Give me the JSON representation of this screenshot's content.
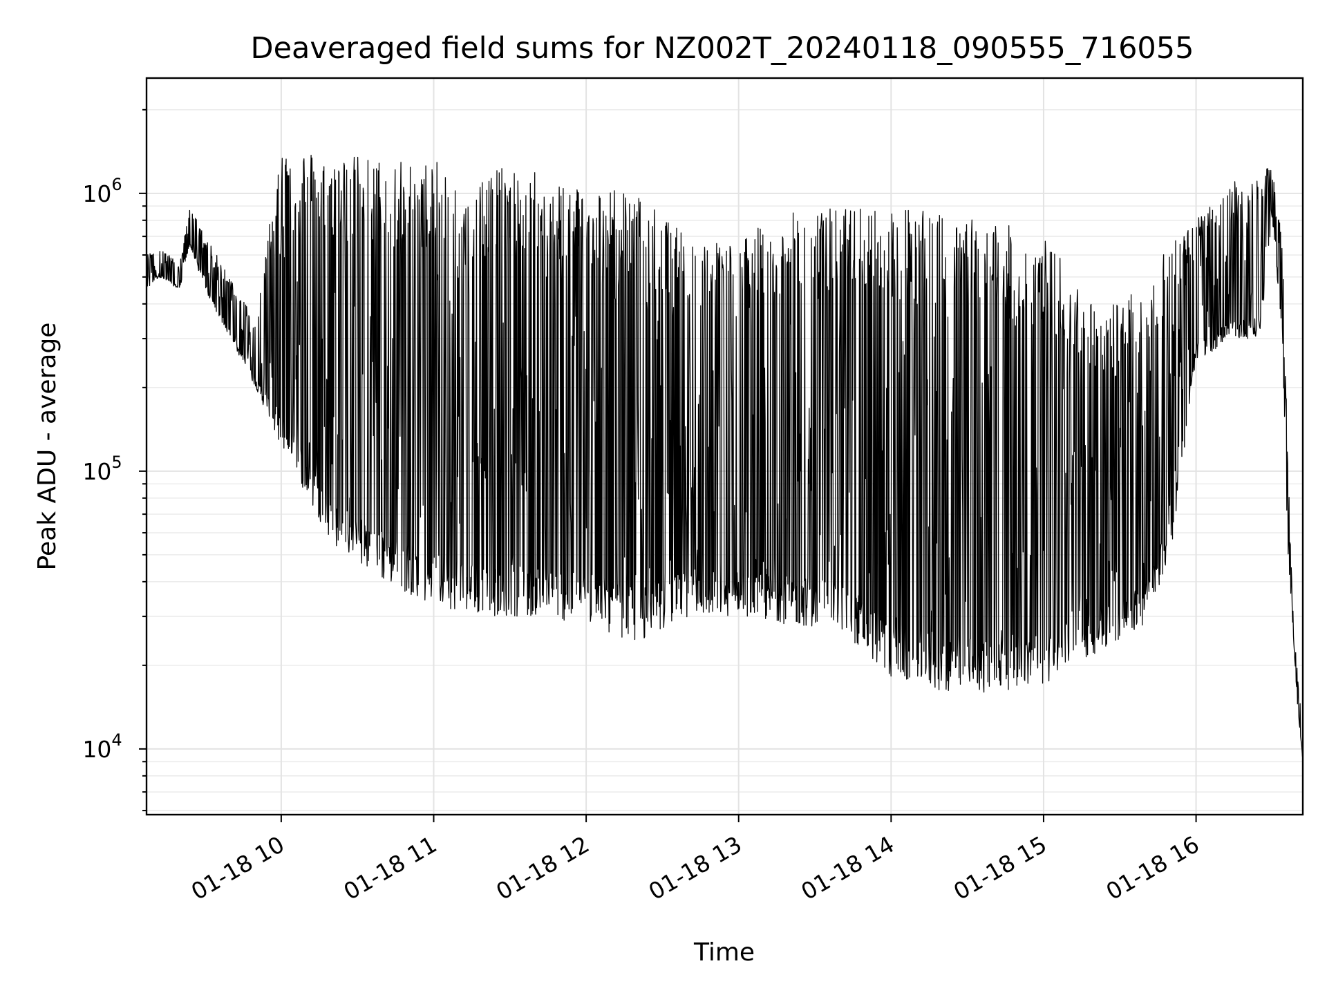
{
  "chart_data": {
    "type": "line",
    "title": "Deaveraged field sums for NZ002T_20240118_090555_716055",
    "xlabel": "Time",
    "ylabel": "Peak ADU - average",
    "yscale": "log",
    "grid": true,
    "line_color": "#000000",
    "xlim": [
      "2024-01-18 09:07",
      "2024-01-18 16:42"
    ],
    "ylim": [
      5800,
      2600000
    ],
    "x_ticks": [
      {
        "value": "2024-01-18 10:00",
        "label": "01-18 10"
      },
      {
        "value": "2024-01-18 11:00",
        "label": "01-18 11"
      },
      {
        "value": "2024-01-18 12:00",
        "label": "01-18 12"
      },
      {
        "value": "2024-01-18 13:00",
        "label": "01-18 13"
      },
      {
        "value": "2024-01-18 14:00",
        "label": "01-18 14"
      },
      {
        "value": "2024-01-18 15:00",
        "label": "01-18 15"
      },
      {
        "value": "2024-01-18 16:00",
        "label": "01-18 16"
      }
    ],
    "y_ticks": [
      {
        "value": 10000,
        "base": "10",
        "exp": "4"
      },
      {
        "value": 100000,
        "base": "10",
        "exp": "5"
      },
      {
        "value": 1000000,
        "base": "10",
        "exp": "6"
      }
    ],
    "series": [
      {
        "x": [
          "2024-01-18 09:07",
          "2024-01-18 09:12",
          "2024-01-18 09:20",
          "2024-01-18 09:24",
          "2024-01-18 09:30",
          "2024-01-18 09:40",
          "2024-01-18 09:50",
          "2024-01-18 10:00",
          "2024-01-18 10:20",
          "2024-01-18 10:40",
          "2024-01-18 11:00",
          "2024-01-18 11:20",
          "2024-01-18 11:40",
          "2024-01-18 12:00",
          "2024-01-18 12:10",
          "2024-01-18 12:20",
          "2024-01-18 12:40",
          "2024-01-18 13:00",
          "2024-01-18 13:20",
          "2024-01-18 13:40",
          "2024-01-18 14:00",
          "2024-01-18 14:20",
          "2024-01-18 14:40",
          "2024-01-18 15:00",
          "2024-01-18 15:20",
          "2024-01-18 15:40",
          "2024-01-18 15:50",
          "2024-01-18 16:00",
          "2024-01-18 16:15",
          "2024-01-18 16:25",
          "2024-01-18 16:30",
          "2024-01-18 16:34",
          "2024-01-18 16:36",
          "2024-01-18 16:38",
          "2024-01-18 16:40",
          "2024-01-18 16:42"
        ],
        "low": [
          450000,
          500000,
          450000,
          650000,
          450000,
          300000,
          200000,
          120000,
          55000,
          40000,
          33000,
          30000,
          30000,
          28000,
          26000,
          24000,
          30000,
          30000,
          28000,
          27000,
          18000,
          16000,
          16000,
          17000,
          22000,
          28000,
          50000,
          250000,
          300000,
          300000,
          800000,
          300000,
          50000,
          28000,
          14000,
          9000
        ],
        "high": [
          600000,
          650000,
          550000,
          900000,
          700000,
          500000,
          350000,
          1500000,
          1400000,
          1350000,
          1300000,
          1250000,
          1200000,
          1100000,
          1050000,
          1000000,
          700000,
          700000,
          850000,
          900000,
          900000,
          850000,
          800000,
          700000,
          400000,
          450000,
          700000,
          800000,
          1100000,
          1200000,
          1250000,
          700000,
          120000,
          33000,
          18000,
          12000
        ]
      }
    ]
  }
}
